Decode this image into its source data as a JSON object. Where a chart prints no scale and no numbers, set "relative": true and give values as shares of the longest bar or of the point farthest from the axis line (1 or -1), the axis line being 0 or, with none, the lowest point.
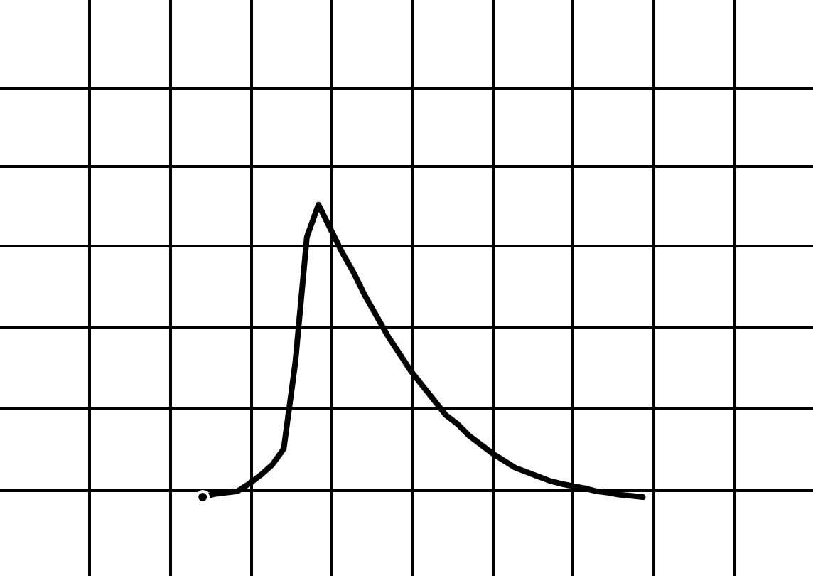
{
  "chart_data": {
    "type": "line",
    "relative": true,
    "grid": true,
    "categories": [
      null,
      null,
      null,
      null,
      null,
      null,
      null,
      null,
      null,
      null,
      null,
      null,
      null,
      null,
      null,
      null,
      null,
      null,
      null,
      null,
      null,
      null,
      null,
      null,
      null,
      null,
      null,
      null,
      null,
      null,
      null,
      null,
      null,
      null,
      null,
      null,
      null,
      null,
      null
    ],
    "series": [
      {
        "color": "#000000",
        "values": [
          0,
          0.01,
          0.015,
          0.02,
          0.045,
          0.075,
          0.11,
          0.165,
          0.46,
          0.89,
          1,
          0.92,
          0.84,
          0.77,
          0.69,
          0.62,
          0.55,
          0.49,
          0.43,
          0.38,
          0.33,
          0.28,
          0.25,
          0.21,
          0.18,
          0.15,
          0.125,
          0.1,
          0.085,
          0.07,
          0.055,
          0.045,
          0.037,
          0.03,
          0.02,
          0.015,
          0.008,
          0.004,
          0
        ]
      }
    ]
  }
}
